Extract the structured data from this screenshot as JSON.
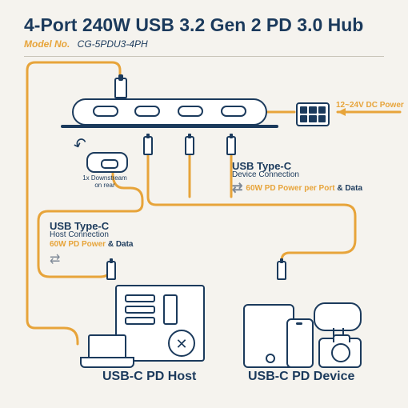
{
  "colors": {
    "background": "#f5f3ee",
    "primary_line": "#1b3a5c",
    "accent": "#e7a43a",
    "muted": "#7f8a97",
    "rule": "#c8c4b8",
    "cable_stroke_width": 3
  },
  "title": "4-Port 240W USB 3.2 Gen 2 PD 3.0 Hub",
  "model_label": "Model No.",
  "model_number": "CG-5PDU3-4PH",
  "dc_power_label": "12~24V DC Power",
  "rear_port_label": "1x Downstream\non rear",
  "device_conn": {
    "title": "USB Type-C",
    "subtitle": "Device Connection",
    "power": "60W PD Power per Port",
    "data": "& Data"
  },
  "host_conn": {
    "title": "USB Type-C",
    "subtitle": "Host Connection",
    "power": "60W PD Power",
    "data": "& Data"
  },
  "bottom_labels": {
    "host": "USB-C PD Host",
    "device": "USB-C PD Device"
  },
  "diagram": {
    "type": "infographic",
    "hub_ports": 4,
    "device_connections": 3,
    "host_connections": 1,
    "downstream_rear_ports": 1,
    "power_per_port_watts": 60,
    "total_watts": 240,
    "dc_input_voltage_range": "12~24V",
    "usb_spec": "USB 3.2 Gen 2",
    "pd_spec": "PD 3.0"
  }
}
